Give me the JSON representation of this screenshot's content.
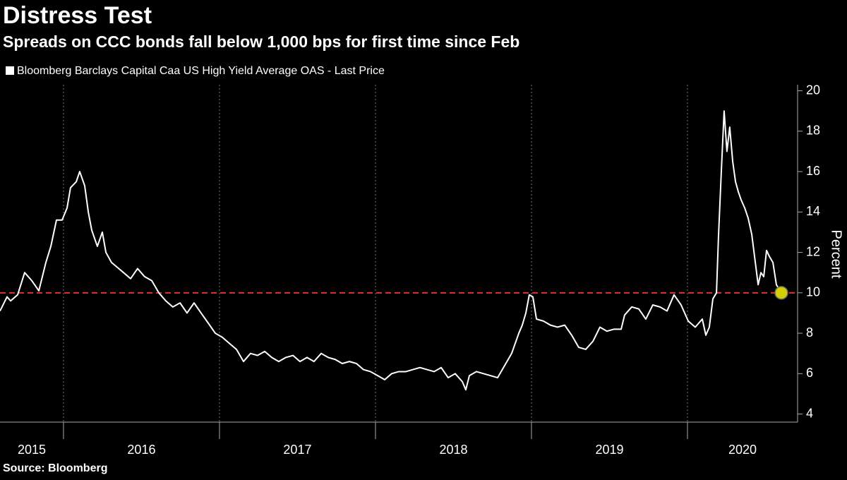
{
  "chart_data": {
    "type": "line",
    "title": "Distress Test",
    "subtitle": "Spreads on CCC bonds fall below 1,000 bps for first time since Feb",
    "source": "Source: Bloomberg",
    "y_label": "Percent",
    "x": [
      2015.593,
      2015.638,
      2015.661,
      2015.706,
      2015.751,
      2015.797,
      2015.842,
      2015.887,
      2015.919,
      2015.955,
      2015.991,
      2016.023,
      2016.045,
      2016.082,
      2016.104,
      2016.136,
      2016.159,
      2016.181,
      2016.217,
      2016.249,
      2016.272,
      2016.308,
      2016.339,
      2016.385,
      2016.43,
      2016.475,
      2016.52,
      2016.566,
      2016.611,
      2016.656,
      2016.701,
      2016.747,
      2016.792,
      2016.837,
      2016.882,
      2016.928,
      2016.973,
      2017.018,
      2017.063,
      2017.109,
      2017.154,
      2017.199,
      2017.244,
      2017.29,
      2017.335,
      2017.38,
      2017.425,
      2017.471,
      2017.516,
      2017.561,
      2017.606,
      2017.652,
      2017.697,
      2017.742,
      2017.787,
      2017.833,
      2017.878,
      2017.923,
      2017.968,
      2018.014,
      2018.059,
      2018.104,
      2018.149,
      2018.195,
      2018.24,
      2018.285,
      2018.33,
      2018.376,
      2018.421,
      2018.466,
      2018.511,
      2018.557,
      2018.579,
      2018.602,
      2018.647,
      2018.692,
      2018.738,
      2018.783,
      2018.828,
      2018.873,
      2018.919,
      2018.941,
      2018.964,
      2018.986,
      2019.009,
      2019.032,
      2019.077,
      2019.122,
      2019.167,
      2019.213,
      2019.258,
      2019.303,
      2019.348,
      2019.394,
      2019.439,
      2019.484,
      2019.529,
      2019.575,
      2019.597,
      2019.643,
      2019.688,
      2019.733,
      2019.778,
      2019.824,
      2019.869,
      2019.914,
      2019.959,
      2020.005,
      2020.05,
      2020.095,
      2020.118,
      2020.14,
      2020.163,
      2020.186,
      2020.199,
      2020.217,
      2020.235,
      2020.253,
      2020.271,
      2020.29,
      2020.308,
      2020.326,
      2020.344,
      2020.367,
      2020.389,
      2020.412,
      2020.435,
      2020.453,
      2020.471,
      2020.489,
      2020.507,
      2020.525,
      2020.548,
      2020.57,
      2020.602
    ],
    "series": [
      {
        "name": "Bloomberg Barclays Capital Caa US High Yield Average OAS - Last Price",
        "color": "#ffffff",
        "values": [
          9.1,
          9.8,
          9.6,
          9.9,
          11.0,
          10.6,
          10.1,
          11.5,
          12.3,
          13.6,
          13.6,
          14.2,
          15.2,
          15.5,
          16.0,
          15.3,
          14.0,
          13.1,
          12.3,
          13.0,
          12.0,
          11.5,
          11.3,
          11.0,
          10.7,
          11.2,
          10.8,
          10.6,
          10.0,
          9.6,
          9.3,
          9.5,
          9.0,
          9.5,
          9.0,
          8.5,
          8.0,
          7.8,
          7.5,
          7.2,
          6.6,
          7.0,
          6.9,
          7.1,
          6.8,
          6.6,
          6.8,
          6.9,
          6.6,
          6.8,
          6.6,
          7.0,
          6.8,
          6.7,
          6.5,
          6.6,
          6.5,
          6.2,
          6.1,
          5.9,
          5.7,
          6.0,
          6.1,
          6.1,
          6.2,
          6.3,
          6.2,
          6.1,
          6.3,
          5.8,
          6.0,
          5.6,
          5.2,
          5.9,
          6.1,
          6.0,
          5.9,
          5.8,
          6.4,
          7.0,
          8.0,
          8.4,
          9.0,
          9.9,
          9.8,
          8.7,
          8.6,
          8.4,
          8.3,
          8.4,
          7.9,
          7.3,
          7.2,
          7.6,
          8.3,
          8.1,
          8.2,
          8.2,
          8.9,
          9.3,
          9.2,
          8.7,
          9.4,
          9.3,
          9.1,
          9.9,
          9.4,
          8.6,
          8.3,
          8.7,
          7.9,
          8.3,
          9.7,
          10.0,
          12.8,
          16.0,
          19.0,
          17.0,
          18.2,
          16.5,
          15.5,
          15.0,
          14.6,
          14.2,
          13.7,
          12.9,
          11.5,
          10.4,
          11.0,
          10.8,
          12.1,
          11.8,
          11.5,
          10.4,
          10.0
        ]
      }
    ],
    "xlim": [
      2015.593,
      2020.706
    ],
    "xticks": [
      2015,
      2016,
      2017,
      2018,
      2019,
      2020
    ],
    "ylim": [
      3.6,
      20.3
    ],
    "yticks": [
      4,
      6,
      8,
      10,
      12,
      14,
      16,
      18,
      20
    ],
    "x_grid": true,
    "reference_line": 10,
    "reference_color": "#e0313a",
    "highlight_last": true,
    "highlight_color": "#d4d000"
  }
}
